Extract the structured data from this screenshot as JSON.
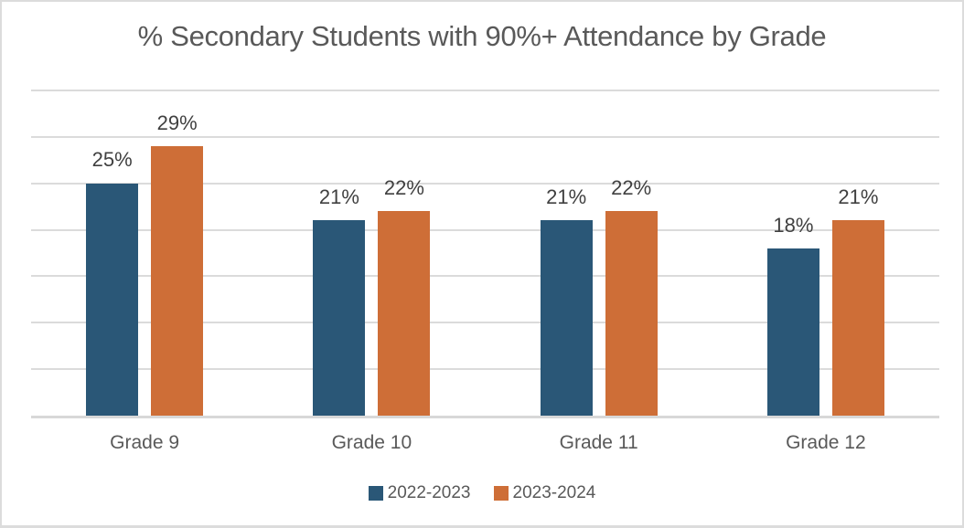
{
  "chart_data": {
    "type": "bar",
    "title": "% Secondary Students with 90%+ Attendance by Grade",
    "categories": [
      "Grade 9",
      "Grade 10",
      "Grade 11",
      "Grade 12"
    ],
    "series": [
      {
        "name": "2022-2023",
        "color": "#2A5777",
        "values": [
          25,
          21,
          21,
          18
        ]
      },
      {
        "name": "2023-2024",
        "color": "#CE6E37",
        "values": [
          29,
          22,
          22,
          21
        ]
      }
    ],
    "data_label_suffix": "%",
    "xlabel": "",
    "ylabel": "",
    "ylim": [
      0,
      35
    ],
    "gridline_step": 5,
    "grid": true,
    "y_tick_labels_visible": false,
    "legend_position": "bottom"
  },
  "colors": {
    "background": "#FFFFFF",
    "frame_border": "#DCDCDC",
    "title": "#595959",
    "data_label": "#404040",
    "category_label": "#595959",
    "legend_label": "#595959",
    "gridline": "#DBDBDB",
    "baseline": "#D8D8D8"
  }
}
